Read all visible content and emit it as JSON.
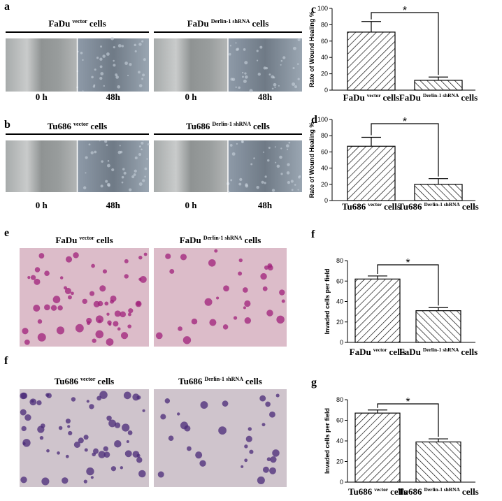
{
  "migration": [
    {
      "label": "a",
      "groups": [
        {
          "name": {
            "base": "FaDu",
            "sup": "vector",
            "tail": "cells"
          },
          "times": [
            "0 h",
            "48h"
          ]
        },
        {
          "name": {
            "base": "FaDu",
            "sup": "Derlin-1 shRNA",
            "tail": "cells"
          },
          "times": [
            "0 h",
            "48h"
          ]
        }
      ]
    },
    {
      "label": "b",
      "groups": [
        {
          "name": {
            "base": "Tu686",
            "sup": "vector",
            "tail": "cells"
          },
          "times": [
            "0 h",
            "48h"
          ]
        },
        {
          "name": {
            "base": "Tu686",
            "sup": "Derlin-1 shRNA",
            "tail": "cells"
          },
          "times": [
            "0 h",
            "48h"
          ]
        }
      ]
    }
  ],
  "invasion": [
    {
      "label": "e",
      "groups": [
        {
          "name": {
            "base": "FaDu",
            "sup": "vector",
            "tail": "cells"
          }
        },
        {
          "name": {
            "base": "FaDu",
            "sup": "Derlin-1 shRNA",
            "tail": "cells"
          }
        }
      ]
    },
    {
      "label": "f",
      "groups": [
        {
          "name": {
            "base": "Tu686",
            "sup": "vector",
            "tail": "cells"
          }
        },
        {
          "name": {
            "base": "Tu686",
            "sup": "Derlin-1 shRNA",
            "tail": "cells"
          }
        }
      ]
    }
  ],
  "chart_data": [
    {
      "type": "bar",
      "label": "c",
      "ylabel": "Rate of Wound Healing %",
      "categories": [
        "FaDu",
        "FaDu"
      ],
      "category_superscripts": [
        "vector",
        "Derlin-1 shRNA"
      ],
      "category_suffix": "cells",
      "values": [
        71,
        12
      ],
      "errors": [
        13,
        4
      ],
      "ylim": [
        0,
        100
      ],
      "yticks": [
        0,
        20,
        40,
        60,
        80,
        100
      ],
      "annotation": "*"
    },
    {
      "type": "bar",
      "label": "d",
      "ylabel": "Rate of Wound Healing %",
      "categories": [
        "Tu686",
        "Tu686"
      ],
      "category_superscripts": [
        "vector",
        "Derlin-1 shRNA"
      ],
      "category_suffix": "cells",
      "values": [
        67,
        20
      ],
      "errors": [
        11,
        7
      ],
      "ylim": [
        0,
        100
      ],
      "yticks": [
        0,
        20,
        40,
        60,
        80,
        100
      ],
      "annotation": "*"
    },
    {
      "type": "bar",
      "label": "f",
      "ylabel": "Invaded cells per field",
      "categories": [
        "FaDu",
        "FaDu"
      ],
      "category_superscripts": [
        "vector",
        "Derlin-1 shRNA"
      ],
      "category_suffix": "cells",
      "values": [
        62,
        31
      ],
      "errors": [
        3,
        3
      ],
      "ylim": [
        0,
        80
      ],
      "yticks": [
        0,
        20,
        40,
        60,
        80
      ],
      "annotation": "*"
    },
    {
      "type": "bar",
      "label": "g",
      "ylabel": "Invaded cells per field",
      "categories": [
        "Tu686",
        "Tu686"
      ],
      "category_superscripts": [
        "vector",
        "Derlin-1 shRNA"
      ],
      "category_suffix": "cells",
      "values": [
        67,
        39
      ],
      "errors": [
        3,
        3
      ],
      "ylim": [
        0,
        80
      ],
      "yticks": [
        0,
        20,
        40,
        60,
        80
      ],
      "annotation": "*"
    }
  ]
}
